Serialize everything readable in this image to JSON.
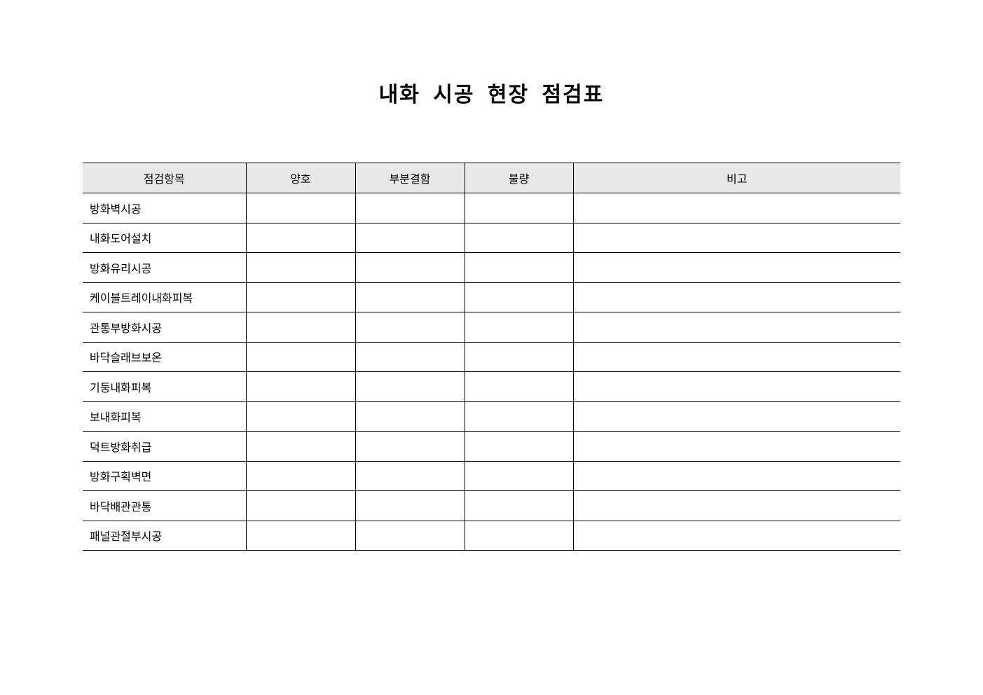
{
  "title": "내화 시공 현장 점검표",
  "table": {
    "headers": [
      "점검항목",
      "양호",
      "부분결함",
      "불량",
      "비고"
    ],
    "rows": [
      "방화벽시공",
      "내화도어설치",
      "방화유리시공",
      "케이블트레이내화피복",
      "관통부방화시공",
      "바닥슬래브보온",
      "기둥내화피복",
      "보내화피복",
      "덕트방화취급",
      "방화구획벽면",
      "바닥배관관통",
      "패널관절부시공"
    ]
  }
}
